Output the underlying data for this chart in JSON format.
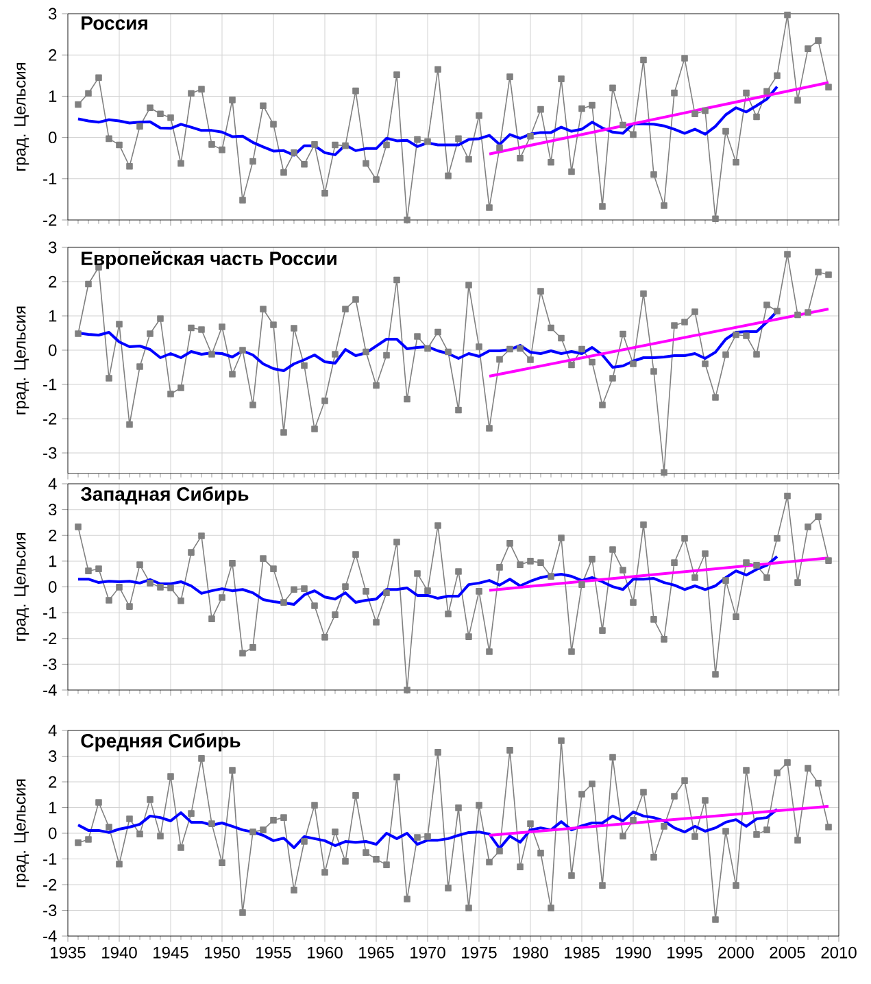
{
  "chart_data": [
    {
      "type": "line",
      "title": "Россия",
      "ylabel": "град. Цельсия",
      "xlim": [
        1935,
        2010
      ],
      "xticks": [
        1935,
        1940,
        1945,
        1950,
        1955,
        1960,
        1965,
        1970,
        1975,
        1980,
        1985,
        1990,
        1995,
        2000,
        2005,
        2010
      ],
      "ylim": [
        -2,
        3
      ],
      "yticks": [
        -2,
        -1,
        0,
        1,
        2,
        3
      ],
      "grid": true,
      "tick_labels": "y",
      "x": [
        1936,
        1937,
        1938,
        1939,
        1940,
        1941,
        1942,
        1943,
        1944,
        1945,
        1946,
        1947,
        1948,
        1949,
        1950,
        1951,
        1952,
        1953,
        1954,
        1955,
        1956,
        1957,
        1958,
        1959,
        1960,
        1961,
        1962,
        1963,
        1964,
        1965,
        1966,
        1967,
        1968,
        1969,
        1970,
        1971,
        1972,
        1973,
        1974,
        1975,
        1976,
        1977,
        1978,
        1979,
        1980,
        1981,
        1982,
        1983,
        1984,
        1985,
        1986,
        1987,
        1988,
        1989,
        1990,
        1991,
        1992,
        1993,
        1994,
        1995,
        1996,
        1997,
        1998,
        1999,
        2000,
        2001,
        2002,
        2003,
        2004,
        2005,
        2006,
        2007,
        2008,
        2009
      ],
      "series": [
        {
          "color": "#808080",
          "marker": "square",
          "values": [
            0.8,
            1.07,
            1.45,
            -0.03,
            -0.18,
            -0.7,
            0.27,
            0.72,
            0.57,
            0.48,
            -0.63,
            1.07,
            1.17,
            -0.17,
            -0.3,
            0.91,
            -1.52,
            -0.58,
            0.77,
            0.32,
            -0.85,
            -0.37,
            -0.65,
            -0.17,
            -1.35,
            -0.18,
            -0.2,
            1.13,
            -0.63,
            -1.02,
            -0.18,
            1.52,
            -2.0,
            -0.05,
            -0.1,
            1.65,
            -0.93,
            -0.03,
            -0.53,
            0.53,
            -1.7,
            -0.25,
            1.47,
            -0.5,
            0.03,
            0.68,
            -0.6,
            1.42,
            -0.83,
            0.7,
            0.78,
            -1.67,
            1.2,
            0.3,
            0.07,
            1.88,
            -0.9,
            -1.65,
            1.08,
            1.92,
            0.57,
            0.65,
            -1.97,
            0.15,
            -0.6,
            1.08,
            0.5,
            1.12,
            1.5,
            2.97,
            0.9,
            2.15,
            2.35,
            1.22
          ]
        },
        {
          "color": "#0000ff",
          "marker": "none",
          "x": [
            1936,
            1937,
            1938,
            1939,
            1940,
            1941,
            1942,
            1943,
            1944,
            1945,
            1946,
            1947,
            1948,
            1949,
            1950,
            1951,
            1952,
            1953,
            1954,
            1955,
            1956,
            1957,
            1958,
            1959,
            1960,
            1961,
            1962,
            1963,
            1964,
            1965,
            1966,
            1967,
            1968,
            1969,
            1970,
            1971,
            1972,
            1973,
            1974,
            1975,
            1976,
            1977,
            1978,
            1979,
            1980,
            1981,
            1982,
            1983,
            1984,
            1985,
            1986,
            1987,
            1988,
            1989,
            1990,
            1991,
            1992,
            1993,
            1994,
            1995,
            1996,
            1997,
            1998,
            1999,
            2000,
            2001,
            2002,
            2003,
            2004
          ],
          "values": [
            0.45,
            0.4,
            0.37,
            0.43,
            0.4,
            0.35,
            0.37,
            0.38,
            0.23,
            0.22,
            0.32,
            0.25,
            0.17,
            0.17,
            0.13,
            0.02,
            0.03,
            -0.12,
            -0.23,
            -0.33,
            -0.32,
            -0.43,
            -0.2,
            -0.2,
            -0.37,
            -0.42,
            -0.18,
            -0.32,
            -0.27,
            -0.27,
            -0.02,
            -0.08,
            -0.07,
            -0.22,
            -0.13,
            -0.18,
            -0.18,
            -0.18,
            -0.05,
            -0.03,
            0.05,
            -0.17,
            0.07,
            -0.02,
            0.08,
            0.12,
            0.12,
            0.25,
            0.15,
            0.2,
            0.37,
            0.23,
            0.13,
            0.1,
            0.33,
            0.33,
            0.32,
            0.28,
            0.2,
            0.1,
            0.2,
            0.08,
            0.27,
            0.55,
            0.72,
            0.62,
            0.77,
            0.93,
            1.23
          ]
        },
        {
          "color": "#ff00ff",
          "marker": "none",
          "x": [
            1976,
            2009
          ],
          "values": [
            -0.4,
            1.33
          ]
        }
      ]
    },
    {
      "type": "line",
      "title": "Европейская часть России",
      "ylabel": "град. Цельсия",
      "xlim": [
        1935,
        2010
      ],
      "xticks": [
        1935,
        1940,
        1945,
        1950,
        1955,
        1960,
        1965,
        1970,
        1975,
        1980,
        1985,
        1990,
        1995,
        2000,
        2005,
        2010
      ],
      "ylim": [
        -3.6,
        3
      ],
      "yticks": [
        -3,
        -2,
        -1,
        0,
        1,
        2,
        3
      ],
      "grid": true,
      "tick_labels": "y",
      "x": [
        1936,
        1937,
        1938,
        1939,
        1940,
        1941,
        1942,
        1943,
        1944,
        1945,
        1946,
        1947,
        1948,
        1949,
        1950,
        1951,
        1952,
        1953,
        1954,
        1955,
        1956,
        1957,
        1958,
        1959,
        1960,
        1961,
        1962,
        1963,
        1964,
        1965,
        1966,
        1967,
        1968,
        1969,
        1970,
        1971,
        1972,
        1973,
        1974,
        1975,
        1976,
        1977,
        1978,
        1979,
        1980,
        1981,
        1982,
        1983,
        1984,
        1985,
        1986,
        1987,
        1988,
        1989,
        1990,
        1991,
        1992,
        1993,
        1994,
        1995,
        1996,
        1997,
        1998,
        1999,
        2000,
        2001,
        2002,
        2003,
        2004,
        2005,
        2006,
        2007,
        2008,
        2009
      ],
      "series": [
        {
          "color": "#808080",
          "marker": "square",
          "values": [
            0.48,
            1.93,
            2.42,
            -0.82,
            0.76,
            -2.17,
            -0.48,
            0.48,
            0.92,
            -1.28,
            -1.1,
            0.65,
            0.6,
            -0.12,
            0.68,
            -0.7,
            0,
            -1.6,
            1.2,
            0.74,
            -2.4,
            0.64,
            -0.45,
            -2.3,
            -1.48,
            -0.12,
            1.2,
            1.48,
            -0.05,
            -1.03,
            -0.15,
            2.05,
            -1.43,
            0.4,
            0.05,
            0.53,
            -0.05,
            -1.75,
            1.9,
            0.1,
            -2.28,
            -0.27,
            0.03,
            0.05,
            -0.28,
            1.72,
            0.65,
            0.35,
            -0.43,
            0.03,
            -0.35,
            -1.6,
            -0.82,
            0.47,
            -0.4,
            1.65,
            -0.62,
            -3.57,
            0.72,
            0.82,
            1.12,
            -0.4,
            -1.38,
            -0.13,
            0.45,
            0.42,
            -0.12,
            1.32,
            1.14,
            2.8,
            1.03,
            1.1,
            2.28,
            2.2
          ]
        },
        {
          "color": "#0000ff",
          "marker": "none",
          "x": [
            1936,
            1937,
            1938,
            1939,
            1940,
            1941,
            1942,
            1943,
            1944,
            1945,
            1946,
            1947,
            1948,
            1949,
            1950,
            1951,
            1952,
            1953,
            1954,
            1955,
            1956,
            1957,
            1958,
            1959,
            1960,
            1961,
            1962,
            1963,
            1964,
            1965,
            1966,
            1967,
            1968,
            1969,
            1970,
            1971,
            1972,
            1973,
            1974,
            1975,
            1976,
            1977,
            1978,
            1979,
            1980,
            1981,
            1982,
            1983,
            1984,
            1985,
            1986,
            1987,
            1988,
            1989,
            1990,
            1991,
            1992,
            1993,
            1994,
            1995,
            1996,
            1997,
            1998,
            1999,
            2000,
            2001,
            2002,
            2003,
            2004
          ],
          "values": [
            0.5,
            0.46,
            0.44,
            0.52,
            0.24,
            0.1,
            0.12,
            0.02,
            -0.22,
            -0.1,
            -0.22,
            -0.04,
            -0.12,
            -0.08,
            -0.1,
            -0.2,
            -0.02,
            -0.14,
            -0.4,
            -0.54,
            -0.6,
            -0.4,
            -0.28,
            -0.14,
            -0.34,
            -0.38,
            0.02,
            -0.16,
            -0.08,
            0.12,
            0.32,
            0.32,
            0.04,
            0.08,
            0.1,
            -0.02,
            -0.1,
            -0.24,
            -0.1,
            -0.18,
            -0.02,
            -0.02,
            0.02,
            0.14,
            -0.06,
            -0.1,
            -0.02,
            -0.1,
            -0.04,
            -0.1,
            0.08,
            -0.14,
            -0.5,
            -0.46,
            -0.32,
            -0.22,
            -0.22,
            -0.2,
            -0.16,
            -0.16,
            -0.1,
            -0.24,
            -0.06,
            0.32,
            0.52,
            0.54,
            0.54,
            0.82,
            1.14
          ]
        },
        {
          "color": "#ff00ff",
          "marker": "none",
          "x": [
            1976,
            2009
          ],
          "values": [
            -0.76,
            1.2
          ]
        }
      ]
    },
    {
      "type": "line",
      "title": "Западная Сибирь",
      "ylabel": "град. Цельсия",
      "xlim": [
        1935,
        2010
      ],
      "xticks": [
        1935,
        1940,
        1945,
        1950,
        1955,
        1960,
        1965,
        1970,
        1975,
        1980,
        1985,
        1990,
        1995,
        2000,
        2005,
        2010
      ],
      "ylim": [
        -4,
        4
      ],
      "yticks": [
        -4,
        -3,
        -2,
        -1,
        0,
        1,
        2,
        3,
        4
      ],
      "grid": true,
      "tick_labels": "y",
      "x": [
        1936,
        1937,
        1938,
        1939,
        1940,
        1941,
        1942,
        1943,
        1944,
        1945,
        1946,
        1947,
        1948,
        1949,
        1950,
        1951,
        1952,
        1953,
        1954,
        1955,
        1956,
        1957,
        1958,
        1959,
        1960,
        1961,
        1962,
        1963,
        1964,
        1965,
        1966,
        1967,
        1968,
        1969,
        1970,
        1971,
        1972,
        1973,
        1974,
        1975,
        1976,
        1977,
        1978,
        1979,
        1980,
        1981,
        1982,
        1983,
        1984,
        1985,
        1986,
        1987,
        1988,
        1989,
        1990,
        1991,
        1992,
        1993,
        1994,
        1995,
        1996,
        1997,
        1998,
        1999,
        2000,
        2001,
        2002,
        2003,
        2004,
        2005,
        2006,
        2007,
        2008,
        2009
      ],
      "series": [
        {
          "color": "#808080",
          "marker": "square",
          "values": [
            2.33,
            0.62,
            0.7,
            -0.52,
            -0.01,
            -0.76,
            0.86,
            0.15,
            -0.01,
            -0.04,
            -0.54,
            1.34,
            1.98,
            -1.24,
            -0.41,
            0.92,
            -2.57,
            -2.35,
            1.1,
            0.7,
            -0.6,
            -0.1,
            -0.07,
            -0.73,
            -1.95,
            -1.08,
            0.01,
            1.26,
            -0.17,
            -1.37,
            -0.23,
            1.74,
            -4.0,
            0.52,
            -0.15,
            2.38,
            -1.05,
            0.6,
            -1.93,
            -0.17,
            -2.51,
            0.76,
            1.69,
            0.86,
            1.0,
            0.94,
            0.41,
            1.9,
            -2.51,
            0.09,
            1.08,
            -1.69,
            1.45,
            0.65,
            -0.6,
            2.41,
            -1.26,
            -2.03,
            0.94,
            1.88,
            0.36,
            1.29,
            -3.39,
            0.25,
            -1.16,
            0.94,
            0.84,
            0.36,
            1.88,
            3.53,
            0.17,
            2.33,
            2.72,
            1.02
          ]
        },
        {
          "color": "#0000ff",
          "marker": "none",
          "x": [
            1936,
            1937,
            1938,
            1939,
            1940,
            1941,
            1942,
            1943,
            1944,
            1945,
            1946,
            1947,
            1948,
            1949,
            1950,
            1951,
            1952,
            1953,
            1954,
            1955,
            1956,
            1957,
            1958,
            1959,
            1960,
            1961,
            1962,
            1963,
            1964,
            1965,
            1966,
            1967,
            1968,
            1969,
            1970,
            1971,
            1972,
            1973,
            1974,
            1975,
            1976,
            1977,
            1978,
            1979,
            1980,
            1981,
            1982,
            1983,
            1984,
            1985,
            1986,
            1987,
            1988,
            1989,
            1990,
            1991,
            1992,
            1993,
            1994,
            1995,
            1996,
            1997,
            1998,
            1999,
            2000,
            2001,
            2002,
            2003,
            2004
          ],
          "values": [
            0.3,
            0.3,
            0.17,
            0.22,
            0.2,
            0.22,
            0.15,
            0.28,
            0.12,
            0.12,
            0.2,
            0.04,
            -0.25,
            -0.15,
            -0.07,
            -0.15,
            -0.1,
            -0.23,
            -0.49,
            -0.57,
            -0.62,
            -0.68,
            -0.31,
            -0.15,
            -0.39,
            -0.47,
            -0.23,
            -0.6,
            -0.52,
            -0.47,
            -0.1,
            -0.1,
            -0.04,
            -0.33,
            -0.33,
            -0.44,
            -0.36,
            -0.36,
            0.09,
            0.15,
            0.25,
            0.07,
            0.3,
            0.04,
            0.22,
            0.36,
            0.44,
            0.49,
            0.41,
            0.25,
            0.36,
            0.2,
            0.01,
            -0.1,
            0.3,
            0.3,
            0.33,
            0.17,
            0.07,
            -0.1,
            0.04,
            -0.1,
            0.04,
            0.36,
            0.62,
            0.46,
            0.68,
            0.84,
            1.18
          ]
        },
        {
          "color": "#ff00ff",
          "marker": "none",
          "x": [
            1976,
            2009
          ],
          "values": [
            -0.13,
            1.12
          ]
        }
      ]
    },
    {
      "type": "line",
      "title": "Средняя Сибирь",
      "ylabel": "град. Цельсия",
      "xlim": [
        1935,
        2010
      ],
      "xticks": [
        1935,
        1940,
        1945,
        1950,
        1955,
        1960,
        1965,
        1970,
        1975,
        1980,
        1985,
        1990,
        1995,
        2000,
        2005,
        2010
      ],
      "ylim": [
        -4,
        4
      ],
      "yticks": [
        -4,
        -3,
        -2,
        -1,
        0,
        1,
        2,
        3,
        4
      ],
      "grid": true,
      "x": [
        1936,
        1937,
        1938,
        1939,
        1940,
        1941,
        1942,
        1943,
        1944,
        1945,
        1946,
        1947,
        1948,
        1949,
        1950,
        1951,
        1952,
        1953,
        1954,
        1955,
        1956,
        1957,
        1958,
        1959,
        1960,
        1961,
        1962,
        1963,
        1964,
        1965,
        1966,
        1967,
        1968,
        1969,
        1970,
        1971,
        1972,
        1973,
        1974,
        1975,
        1976,
        1977,
        1978,
        1979,
        1980,
        1981,
        1982,
        1983,
        1984,
        1985,
        1986,
        1987,
        1988,
        1989,
        1990,
        1991,
        1992,
        1993,
        1994,
        1995,
        1996,
        1997,
        1998,
        1999,
        2000,
        2001,
        2002,
        2003,
        2004,
        2005,
        2006,
        2007,
        2008,
        2009
      ],
      "series": [
        {
          "color": "#808080",
          "marker": "square",
          "values": [
            -0.37,
            -0.24,
            1.2,
            0.24,
            -1.2,
            0.56,
            -0.03,
            1.31,
            -0.11,
            2.21,
            -0.56,
            0.77,
            2.91,
            0.37,
            -1.15,
            2.45,
            -3.09,
            0.05,
            0.13,
            0.51,
            0.61,
            -2.21,
            -0.32,
            1.09,
            -1.52,
            0.05,
            -1.09,
            1.47,
            -0.75,
            -1.01,
            -1.23,
            2.19,
            -2.56,
            -0.16,
            -0.13,
            3.15,
            -2.13,
            0.99,
            -2.91,
            1.09,
            -1.12,
            -0.69,
            3.23,
            -1.31,
            0.37,
            -0.77,
            -2.91,
            3.6,
            -1.65,
            1.52,
            1.92,
            -2.03,
            2.96,
            -0.11,
            0.51,
            1.6,
            -0.93,
            0.27,
            1.44,
            2.05,
            -0.13,
            1.28,
            -3.36,
            0.08,
            -2.03,
            2.45,
            -0.05,
            0.13,
            2.35,
            2.75,
            -0.27,
            2.53,
            1.95,
            0.24
          ]
        },
        {
          "color": "#0000ff",
          "marker": "none",
          "x": [
            1936,
            1937,
            1938,
            1939,
            1940,
            1941,
            1942,
            1943,
            1944,
            1945,
            1946,
            1947,
            1948,
            1949,
            1950,
            1951,
            1952,
            1953,
            1954,
            1955,
            1956,
            1957,
            1958,
            1959,
            1960,
            1961,
            1962,
            1963,
            1964,
            1965,
            1966,
            1967,
            1968,
            1969,
            1970,
            1971,
            1972,
            1973,
            1974,
            1975,
            1976,
            1977,
            1978,
            1979,
            1980,
            1981,
            1982,
            1983,
            1984,
            1985,
            1986,
            1987,
            1988,
            1989,
            1990,
            1991,
            1992,
            1993,
            1994,
            1995,
            1996,
            1997,
            1998,
            1999,
            2000,
            2001,
            2002,
            2003,
            2004
          ],
          "values": [
            0.32,
            0.11,
            0.11,
            0.03,
            0.16,
            0.24,
            0.35,
            0.67,
            0.61,
            0.48,
            0.8,
            0.43,
            0.43,
            0.32,
            0.4,
            0.27,
            0.13,
            0.05,
            -0.08,
            -0.29,
            -0.19,
            -0.56,
            -0.13,
            -0.21,
            -0.29,
            -0.48,
            -0.32,
            -0.35,
            -0.32,
            -0.43,
            0,
            -0.21,
            0,
            -0.43,
            -0.27,
            -0.27,
            -0.21,
            -0.08,
            0.03,
            0.05,
            -0.03,
            -0.59,
            -0.11,
            -0.35,
            0.13,
            0.21,
            0.13,
            0.45,
            0.13,
            0.29,
            0.4,
            0.4,
            0.67,
            0.48,
            0.83,
            0.67,
            0.61,
            0.48,
            0.21,
            0.05,
            0.27,
            0.08,
            0.21,
            0.43,
            0.53,
            0.27,
            0.56,
            0.61,
            0.93
          ]
        },
        {
          "color": "#ff00ff",
          "marker": "none",
          "x": [
            1976,
            2009
          ],
          "values": [
            -0.08,
            1.05
          ]
        }
      ]
    }
  ]
}
